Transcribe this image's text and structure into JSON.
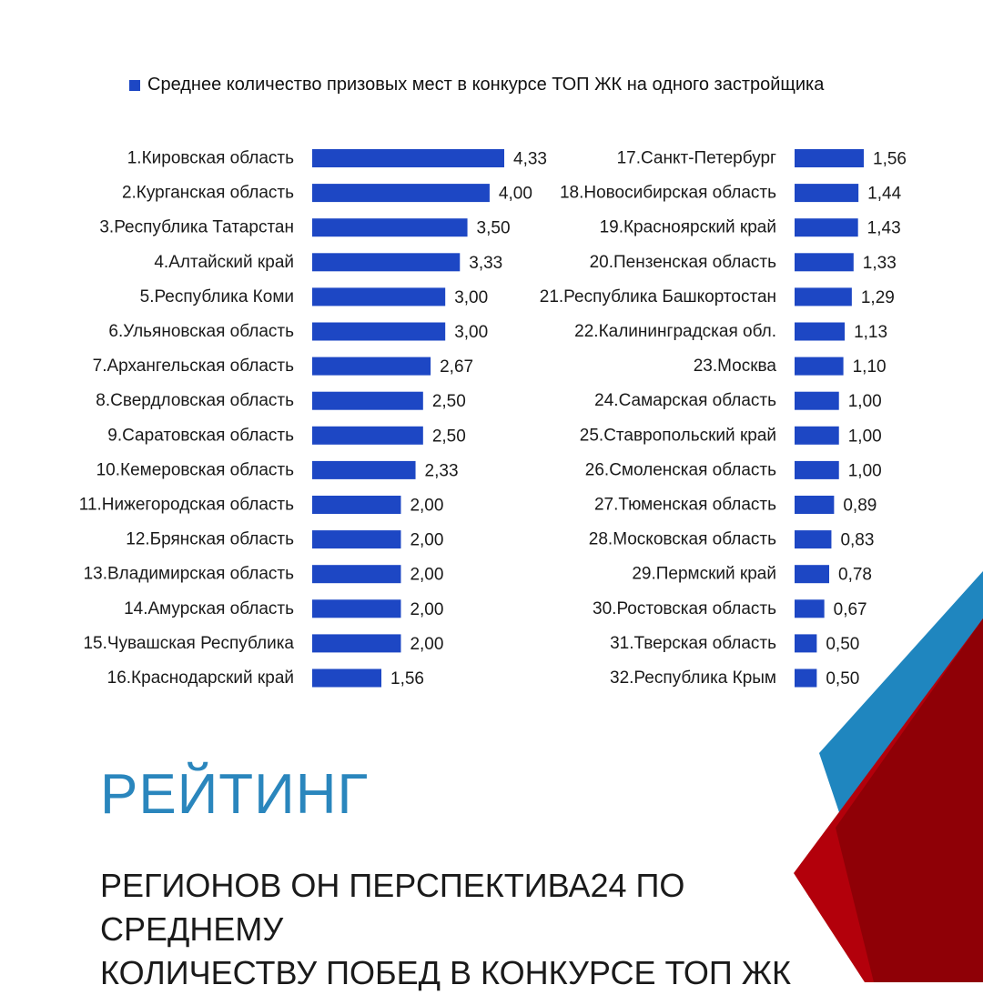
{
  "legend_label": "Среднее количество призовых мест в конкурсе ТОП ЖК на одного застройщика",
  "colors": {
    "bar": "#1d47c4",
    "title": "#2a86bd",
    "deco_blue": "#1f86bf",
    "deco_red": "#b3000b",
    "deco_dark_red": "#8f0006"
  },
  "chart_data": [
    {
      "type": "bar",
      "orientation": "horizontal",
      "series": [
        {
          "name": "Среднее количество призовых мест в конкурсе ТОП ЖК на одного застройщика",
          "values": [
            4.33,
            4.0,
            3.5,
            3.33,
            3.0,
            3.0,
            2.67,
            2.5,
            2.5,
            2.33,
            2.0,
            2.0,
            2.0,
            2.0,
            2.0,
            1.56
          ]
        }
      ],
      "categories": [
        "1.Кировская область",
        "2.Курганская область",
        "3.Республика Татарстан",
        "4.Алтайский край",
        "5.Республика Коми",
        "6.Ульяновская область",
        "7.Архангельская область",
        "8.Свердловская область",
        "9.Саратовская область",
        "10.Кемеровская область",
        "11.Нижегородская область",
        "12.Брянская область",
        "13.Владимирская область",
        "14.Амурская область",
        "15.Чувашская Республика",
        "16.Краснодарский край"
      ],
      "value_labels": [
        "4,33",
        "4,00",
        "3,50",
        "3,33",
        "3,00",
        "3,00",
        "2,67",
        "2,50",
        "2,50",
        "2,33",
        "2,00",
        "2,00",
        "2,00",
        "2,00",
        "2,00",
        "1,56"
      ],
      "xlim": [
        0,
        4.33
      ]
    },
    {
      "type": "bar",
      "orientation": "horizontal",
      "series": [
        {
          "name": "Среднее количество призовых мест в конкурсе ТОП ЖК на одного застройщика",
          "values": [
            1.56,
            1.44,
            1.43,
            1.33,
            1.29,
            1.13,
            1.1,
            1.0,
            1.0,
            1.0,
            0.89,
            0.83,
            0.78,
            0.67,
            0.5,
            0.5
          ]
        }
      ],
      "categories": [
        "17.Санкт-Петербург",
        "18.Новосибирская область",
        "19.Красноярский край",
        "20.Пензенская область",
        "21.Республика Башкортостан",
        "22.Калининградская обл.",
        "23.Москва",
        "24.Самарская область",
        "25.Ставропольский край",
        "26.Смоленская область",
        "27.Тюменская область",
        "28.Московская область",
        "29.Пермский край",
        "30.Ростовская область",
        "31.Тверская область",
        "32.Республика Крым"
      ],
      "value_labels": [
        "1,56",
        "1,44",
        "1,43",
        "1,33",
        "1,29",
        "1,13",
        "1,10",
        "1,00",
        "1,00",
        "1,00",
        "0,89",
        "0,83",
        "0,78",
        "0,67",
        "0,50",
        "0,50"
      ],
      "xlim": [
        0,
        4.33
      ]
    }
  ],
  "title": {
    "main": "РЕЙТИНГ",
    "line1": "РЕГИОНОВ ОН ПЕРСПЕКТИВА24 ПО СРЕДНЕМУ",
    "line2": "КОЛИЧЕСТВУ ПОБЕД В КОНКУРСЕ ТОП ЖК"
  }
}
